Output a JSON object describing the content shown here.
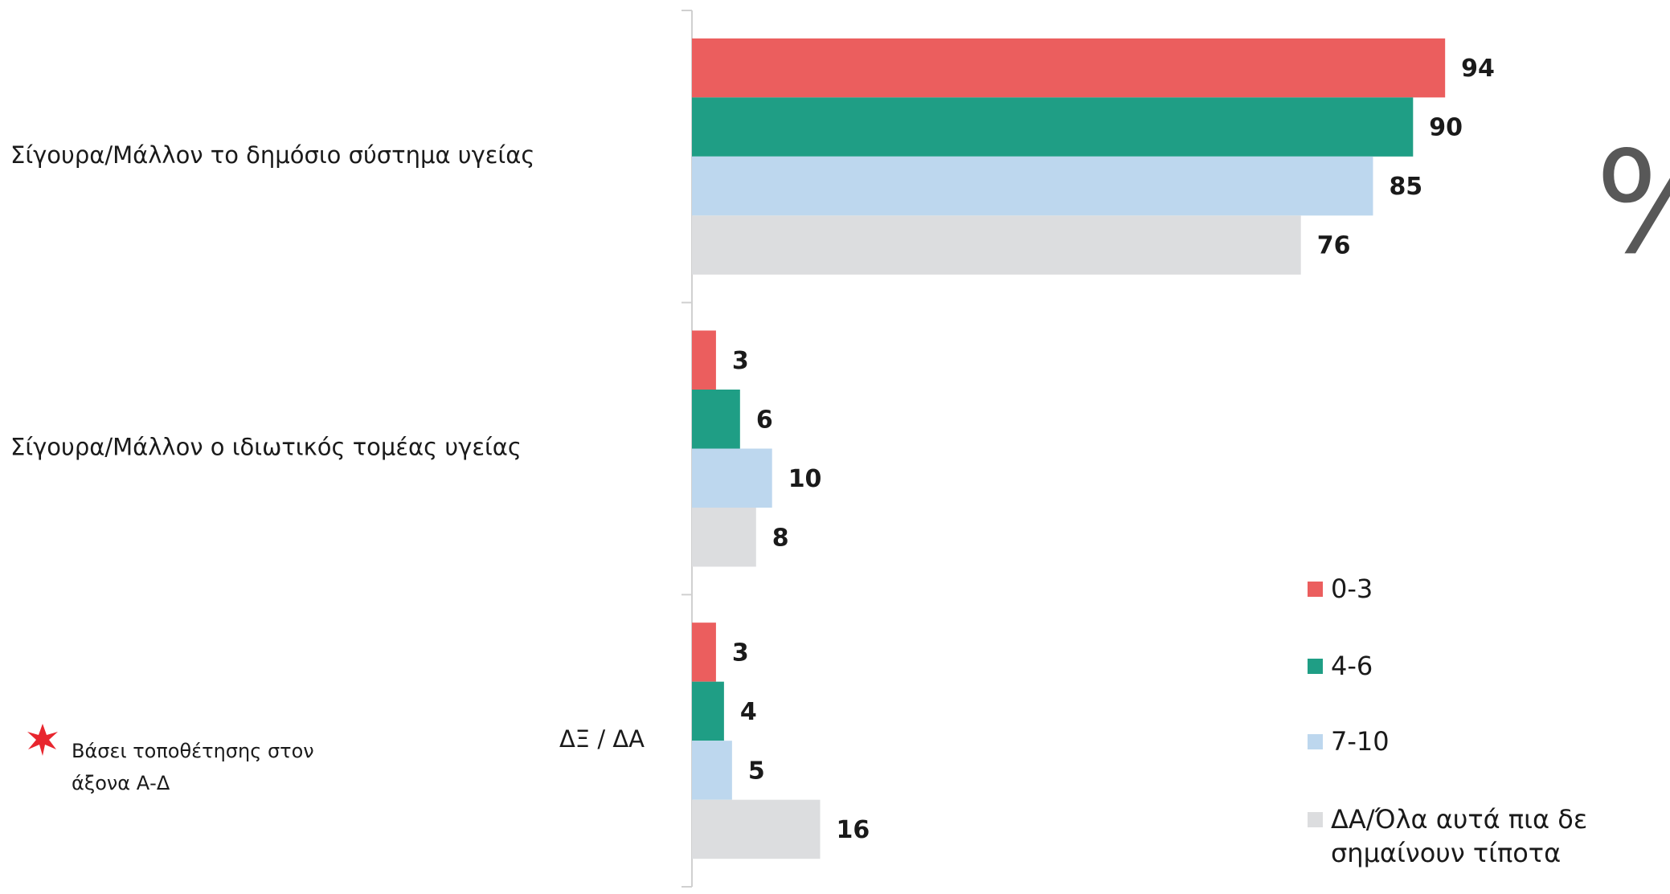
{
  "chart_data": {
    "type": "bar",
    "orientation": "horizontal",
    "categories": [
      "Σίγουρα/Μάλλον το δημόσιο σύστημα υγείας",
      "Σίγουρα/Μάλλον ο ιδιωτικός τομέας υγείας",
      "ΔΞ / ΔΑ"
    ],
    "series": [
      {
        "name": "0-3",
        "color": "#eb5e5e",
        "values": [
          94,
          3,
          3
        ]
      },
      {
        "name": "4-6",
        "color": "#1f9e85",
        "values": [
          90,
          6,
          4
        ]
      },
      {
        "name": "7-10",
        "color": "#bdd7ee",
        "values": [
          85,
          10,
          5
        ]
      },
      {
        "name": "ΔΑ/Όλα αυτά πια δε σημαίνουν τίποτα",
        "color": "#dcdddf",
        "values": [
          76,
          8,
          16
        ]
      }
    ],
    "xlim": [
      0,
      100
    ],
    "unit_symbol": "%",
    "note": "Βάσει τοποθέτησης στον άξονα Α-Δ"
  }
}
